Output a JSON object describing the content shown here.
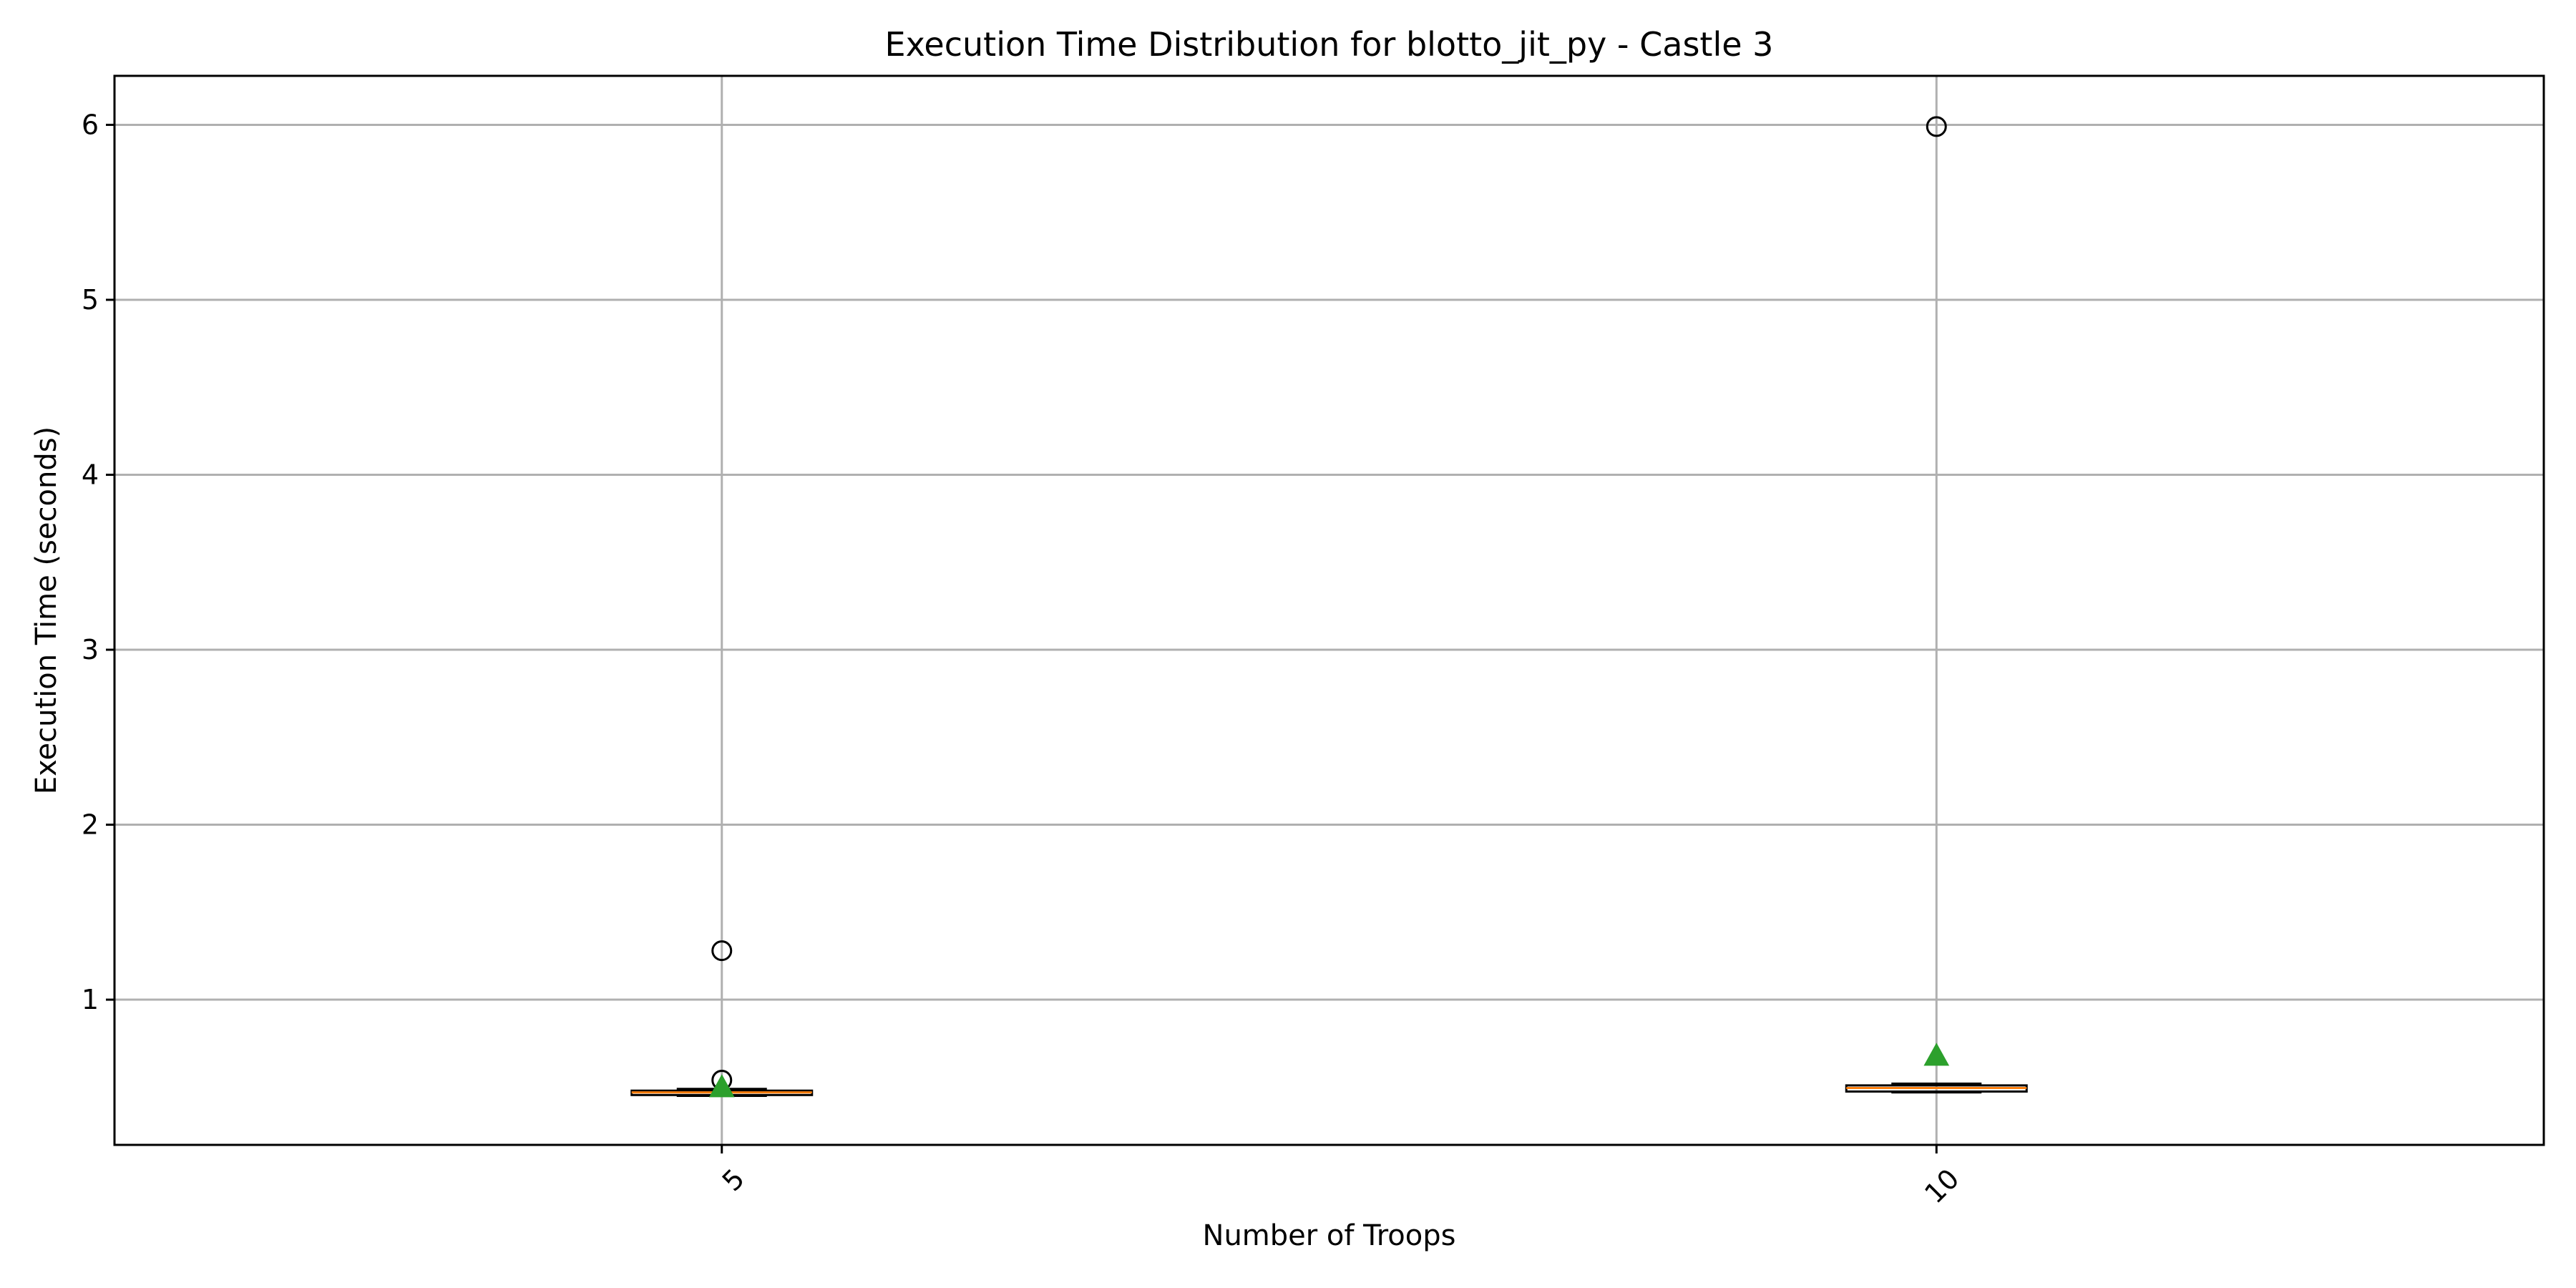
{
  "chart_data": {
    "type": "box",
    "title": "Execution Time Distribution for blotto_jit_py - Castle 3",
    "xlabel": "Number of Troops",
    "ylabel": "Execution Time (seconds)",
    "categories": [
      "5",
      "10"
    ],
    "ylim": [
      0.17,
      6.28
    ],
    "yticks": [
      1,
      2,
      3,
      4,
      5,
      6
    ],
    "grid": true,
    "xtick_rotation_deg": 45,
    "boxes": [
      {
        "category": "5",
        "whisker_low": 0.45,
        "q1": 0.455,
        "median": 0.47,
        "q3": 0.48,
        "whisker_high": 0.49,
        "mean": 0.5,
        "outliers": [
          1.28,
          0.54
        ]
      },
      {
        "category": "10",
        "whisker_low": 0.47,
        "q1": 0.475,
        "median": 0.495,
        "q3": 0.51,
        "whisker_high": 0.52,
        "mean": 0.68,
        "outliers": [
          5.99
        ]
      }
    ],
    "colors": {
      "box_edge": "#000000",
      "median": "#ff7f0e",
      "mean_marker": "#2ca02c",
      "grid": "#b0b0b0",
      "outlier_edge": "#000000"
    }
  }
}
